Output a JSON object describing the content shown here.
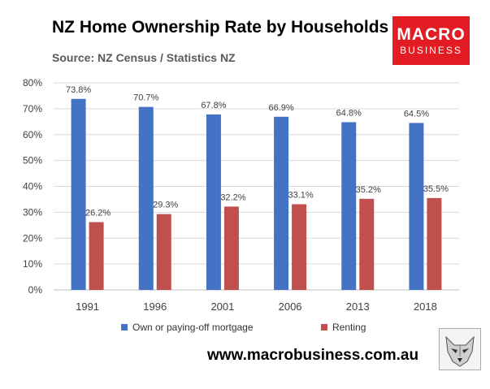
{
  "header": {
    "title": "NZ Home Ownership Rate by Households",
    "source": "Source: NZ Census / Statistics NZ"
  },
  "logo": {
    "line1": "MACRO",
    "line2": "BUSINESS",
    "bg_color": "#e31b23"
  },
  "footer": {
    "url": "www.macrobusiness.com.au",
    "emblem_icon": "wolf-icon"
  },
  "chart_data": {
    "type": "bar",
    "title": "NZ Home Ownership Rate by Households",
    "subtitle": "Source: NZ Census / Statistics NZ",
    "xlabel": "",
    "ylabel": "",
    "ylim": [
      0,
      80
    ],
    "yticks": [
      "0%",
      "10%",
      "20%",
      "30%",
      "40%",
      "50%",
      "60%",
      "70%",
      "80%"
    ],
    "grid": true,
    "legend_position": "bottom",
    "categories": [
      "1991",
      "1996",
      "2001",
      "2006",
      "2013",
      "2018"
    ],
    "series": [
      {
        "name": "Own or paying-off mortgage",
        "color": "#4472c4",
        "values": [
          73.8,
          70.7,
          67.8,
          66.9,
          64.8,
          64.5
        ],
        "labels": [
          "73.8%",
          "70.7%",
          "67.8%",
          "66.9%",
          "64.8%",
          "64.5%"
        ]
      },
      {
        "name": "Renting",
        "color": "#c0504d",
        "values": [
          26.2,
          29.3,
          32.2,
          33.1,
          35.2,
          35.5
        ],
        "labels": [
          "26.2%",
          "29.3%",
          "32.2%",
          "33.1%",
          "35.2%",
          "35.5%"
        ]
      }
    ]
  }
}
